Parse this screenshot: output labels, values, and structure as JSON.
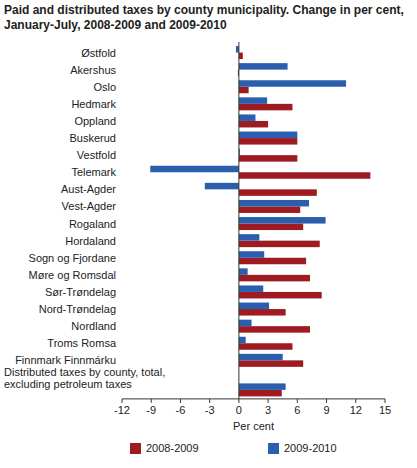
{
  "chart_data": {
    "type": "bar",
    "orientation": "horizontal",
    "title": "Paid and distributed taxes by county municipality. Change in per cent, January-July, 2008-2009 and 2009-2010",
    "x_label": "Per cent",
    "categories": [
      "Østfold",
      "Akershus",
      "Oslo",
      "Hedmark",
      "Oppland",
      "Buskerud",
      "Vestfold",
      "Telemark",
      "Aust-Agder",
      "Vest-Agder",
      "Rogaland",
      "Hordaland",
      "Sogn og Fjordane",
      "Møre og Romsdal",
      "Sør-Trøndelag",
      "Nord-Trøndelag",
      "Nordland",
      "Troms Romsa",
      "Finnmark Finnmárku",
      "Distributed taxes by county, total, excluding petroleum taxes"
    ],
    "series": [
      {
        "name": "2008-2009",
        "color": "#9e1b22",
        "values": [
          0.4,
          -0.1,
          1.0,
          5.5,
          3.0,
          6.0,
          6.0,
          13.5,
          8.0,
          6.3,
          6.6,
          8.3,
          6.9,
          7.3,
          8.5,
          4.8,
          7.3,
          5.5,
          6.6,
          4.4
        ]
      },
      {
        "name": "2009-2010",
        "color": "#2b5fae",
        "values": [
          -0.3,
          5.0,
          11.0,
          2.9,
          1.7,
          6.0,
          0.1,
          -9.1,
          -3.5,
          7.2,
          8.9,
          2.1,
          2.6,
          0.9,
          2.5,
          3.1,
          1.3,
          0.7,
          4.5,
          4.8
        ]
      }
    ],
    "xlim": [
      -12,
      15
    ],
    "xticks": [
      -12,
      -9,
      -6,
      -3,
      0,
      3,
      6,
      9,
      12,
      15
    ],
    "grid": false,
    "legend": "bottom"
  }
}
